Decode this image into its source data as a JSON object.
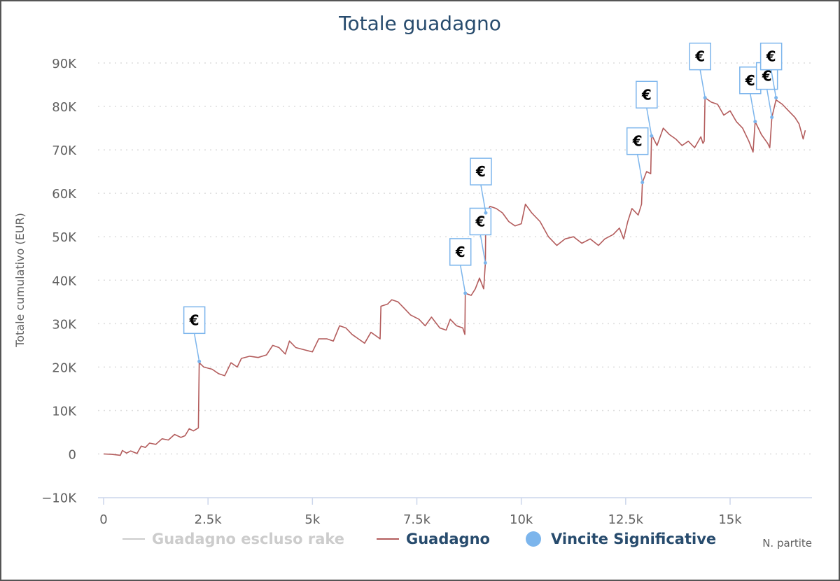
{
  "chart_data": {
    "type": "line",
    "title": "Totale guadagno",
    "ylabel": "Totale cumulativo (EUR)",
    "xlabel": "N. partite",
    "xlim": [
      0,
      16800
    ],
    "ylim": [
      -10000,
      90000
    ],
    "x_ticks": [
      0,
      2500,
      5000,
      7500,
      10000,
      12500,
      15000
    ],
    "x_tick_labels": [
      "0",
      "2.5k",
      "5k",
      "7.5k",
      "10k",
      "12.5k",
      "15k"
    ],
    "y_ticks": [
      -10000,
      0,
      10000,
      20000,
      30000,
      40000,
      50000,
      60000,
      70000,
      80000,
      90000
    ],
    "y_tick_labels": [
      "−10K",
      "0",
      "10K",
      "20K",
      "30K",
      "40K",
      "50K",
      "60K",
      "70K",
      "80K",
      "90K"
    ],
    "grid": true,
    "legend_position": "bottom",
    "legend": [
      {
        "name": "Guadagno escluso rake",
        "color": "#cccccc",
        "marker": "line",
        "hidden": true
      },
      {
        "name": "Guadagno",
        "color": "#b35c5c",
        "marker": "line"
      },
      {
        "name": "Vincite Significative",
        "color": "#7cb5ec",
        "marker": "circle"
      }
    ],
    "series": [
      {
        "name": "Guadagno",
        "color": "#b35c5c",
        "points": [
          [
            0,
            0
          ],
          [
            200,
            -100
          ],
          [
            400,
            -300
          ],
          [
            450,
            800
          ],
          [
            550,
            200
          ],
          [
            650,
            700
          ],
          [
            800,
            100
          ],
          [
            900,
            1800
          ],
          [
            1000,
            1500
          ],
          [
            1100,
            2500
          ],
          [
            1250,
            2200
          ],
          [
            1400,
            3500
          ],
          [
            1550,
            3200
          ],
          [
            1700,
            4500
          ],
          [
            1850,
            3800
          ],
          [
            1950,
            4200
          ],
          [
            2050,
            5800
          ],
          [
            2150,
            5300
          ],
          [
            2270,
            6000
          ],
          [
            2290,
            21000
          ],
          [
            2400,
            20000
          ],
          [
            2600,
            19500
          ],
          [
            2750,
            18500
          ],
          [
            2900,
            18000
          ],
          [
            3050,
            21000
          ],
          [
            3200,
            20000
          ],
          [
            3300,
            22000
          ],
          [
            3500,
            22500
          ],
          [
            3700,
            22200
          ],
          [
            3900,
            22800
          ],
          [
            4050,
            25000
          ],
          [
            4200,
            24500
          ],
          [
            4350,
            23000
          ],
          [
            4450,
            26000
          ],
          [
            4600,
            24500
          ],
          [
            4800,
            24000
          ],
          [
            5000,
            23500
          ],
          [
            5150,
            26500
          ],
          [
            5350,
            26500
          ],
          [
            5500,
            26000
          ],
          [
            5650,
            29500
          ],
          [
            5800,
            29000
          ],
          [
            5950,
            27500
          ],
          [
            6100,
            26500
          ],
          [
            6250,
            25500
          ],
          [
            6400,
            28000
          ],
          [
            6550,
            27000
          ],
          [
            6620,
            26500
          ],
          [
            6640,
            34000
          ],
          [
            6800,
            34500
          ],
          [
            6900,
            35500
          ],
          [
            7050,
            35000
          ],
          [
            7200,
            33500
          ],
          [
            7350,
            32000
          ],
          [
            7550,
            31000
          ],
          [
            7700,
            29500
          ],
          [
            7850,
            31500
          ],
          [
            8050,
            29000
          ],
          [
            8200,
            28500
          ],
          [
            8300,
            31000
          ],
          [
            8450,
            29500
          ],
          [
            8600,
            29000
          ],
          [
            8650,
            27500
          ],
          [
            8660,
            37000
          ],
          [
            8800,
            36500
          ],
          [
            8900,
            38000
          ],
          [
            9000,
            40500
          ],
          [
            9100,
            38000
          ],
          [
            9140,
            44000
          ],
          [
            9150,
            55000
          ],
          [
            9250,
            57000
          ],
          [
            9400,
            56500
          ],
          [
            9550,
            55500
          ],
          [
            9700,
            53500
          ],
          [
            9850,
            52500
          ],
          [
            10000,
            53000
          ],
          [
            10100,
            57500
          ],
          [
            10250,
            55500
          ],
          [
            10450,
            53500
          ],
          [
            10650,
            50000
          ],
          [
            10850,
            48000
          ],
          [
            11050,
            49500
          ],
          [
            11250,
            50000
          ],
          [
            11450,
            48500
          ],
          [
            11650,
            49500
          ],
          [
            11850,
            48000
          ],
          [
            12000,
            49500
          ],
          [
            12200,
            50500
          ],
          [
            12350,
            52000
          ],
          [
            12450,
            49500
          ],
          [
            12550,
            53500
          ],
          [
            12650,
            56500
          ],
          [
            12800,
            55000
          ],
          [
            12880,
            57500
          ],
          [
            12900,
            62500
          ],
          [
            13000,
            65000
          ],
          [
            13100,
            64500
          ],
          [
            13120,
            73500
          ],
          [
            13250,
            71000
          ],
          [
            13400,
            75000
          ],
          [
            13550,
            73500
          ],
          [
            13700,
            72500
          ],
          [
            13850,
            71000
          ],
          [
            14000,
            72000
          ],
          [
            14150,
            70500
          ],
          [
            14300,
            73000
          ],
          [
            14350,
            71500
          ],
          [
            14380,
            72000
          ],
          [
            14400,
            82000
          ],
          [
            14550,
            81000
          ],
          [
            14700,
            80500
          ],
          [
            14850,
            78000
          ],
          [
            15000,
            79000
          ],
          [
            15150,
            76500
          ],
          [
            15300,
            75000
          ],
          [
            15450,
            72000
          ],
          [
            15550,
            69500
          ],
          [
            15600,
            76500
          ],
          [
            15750,
            73500
          ],
          [
            15900,
            71500
          ],
          [
            15950,
            70500
          ],
          [
            16000,
            77500
          ],
          [
            16100,
            81500
          ],
          [
            16250,
            80500
          ],
          [
            16400,
            79000
          ],
          [
            16550,
            77500
          ],
          [
            16650,
            76000
          ],
          [
            16750,
            72500
          ],
          [
            16800,
            74500
          ]
        ]
      },
      {
        "name": "Vincite Significative",
        "color": "#7cb5ec",
        "marker": "€",
        "points": [
          [
            2290,
            21300
          ],
          [
            8660,
            37000
          ],
          [
            9140,
            44000
          ],
          [
            9150,
            55500
          ],
          [
            12900,
            62500
          ],
          [
            13120,
            73200
          ],
          [
            14400,
            82000
          ],
          [
            15600,
            76500
          ],
          [
            16000,
            77500
          ],
          [
            16100,
            82000
          ]
        ]
      }
    ]
  }
}
